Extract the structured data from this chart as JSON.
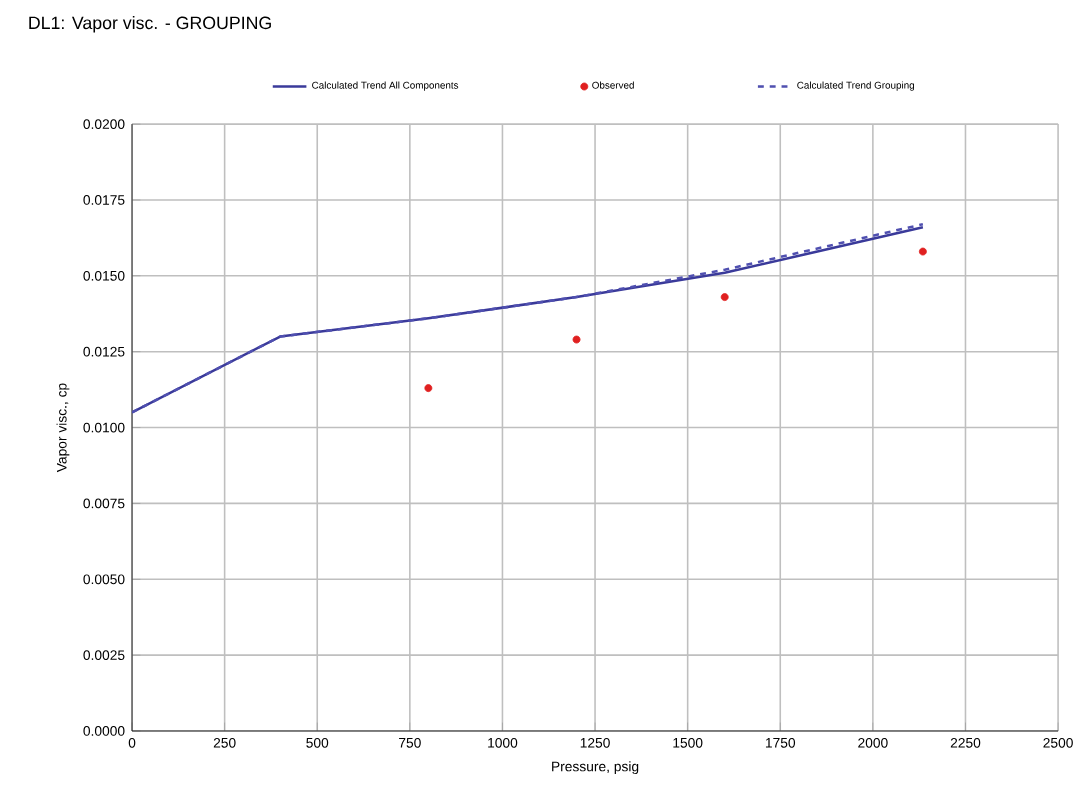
{
  "chart_data": {
    "type": "line",
    "title": "DL1: Vapor visc. - GROUPING",
    "xlabel": "Pressure, psig",
    "ylabel": "Vapor visc., cp",
    "xlim": [
      0,
      2500
    ],
    "xticks": [
      0,
      250,
      500,
      750,
      1000,
      1250,
      1500,
      1750,
      2000,
      2250,
      2500
    ],
    "ylim": [
      0,
      0.02
    ],
    "yticks": [
      {
        "value": 0,
        "label": "0.0000"
      },
      {
        "value": 0.0025,
        "label": "0.0025"
      },
      {
        "value": 0.005,
        "label": "0.0050"
      },
      {
        "value": 0.0075,
        "label": "0.0075"
      },
      {
        "value": 0.01,
        "label": "0.0100"
      },
      {
        "value": 0.0125,
        "label": "0.0125"
      },
      {
        "value": 0.015,
        "label": "0.0150"
      },
      {
        "value": 0.0175,
        "label": "0.0175"
      },
      {
        "value": 0.02,
        "label": "0.0200"
      }
    ],
    "grid": true,
    "legend": "top",
    "series": [
      {
        "name": "Calculated Trend All Components",
        "color": "#3a3a9a",
        "line_style": "solid",
        "marker": "none",
        "x": [
          0,
          400,
          800,
          1200,
          1600,
          2135
        ],
        "values": [
          0.0105,
          0.013,
          0.0136,
          0.0143,
          0.0151,
          0.0166
        ]
      },
      {
        "name": "Observed",
        "type": "scatter",
        "color": "#e02020",
        "marker": "circle",
        "x": [
          800,
          1200,
          1600,
          2135
        ],
        "values": [
          0.0113,
          0.0129,
          0.0143,
          0.0158
        ]
      },
      {
        "name": "Calculated Trend Grouping",
        "color": "#5050b0",
        "line_style": "dashed",
        "marker": "none",
        "x": [
          0,
          400,
          800,
          1200,
          1600,
          2135
        ],
        "values": [
          0.0105,
          0.013,
          0.0136,
          0.0143,
          0.0152,
          0.0167
        ]
      }
    ]
  }
}
